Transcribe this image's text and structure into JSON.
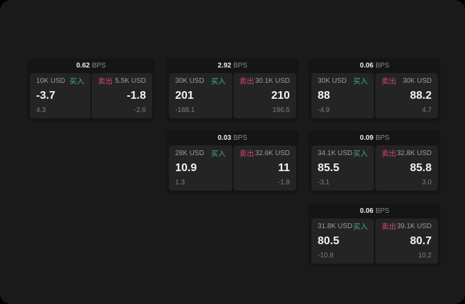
{
  "window": {
    "background": "#1a1a1b"
  },
  "labels": {
    "buy_side": "买入",
    "sell_side": "卖出",
    "bps_unit": "BPS"
  },
  "colors": {
    "page_bg": "#1a1a1b",
    "card_bg": "#151516",
    "panel_bg": "#242425",
    "buy": "#3fae6f",
    "sell": "#d04a68",
    "value_text": "#f4f4f4",
    "muted_text": "#9c9c9c",
    "faint_text": "#7e7e7e"
  },
  "cards": [
    {
      "bps": "0.62",
      "grid": {
        "row": 0,
        "col": 0
      },
      "buy": {
        "notional": "10K USD",
        "price": "-3.7",
        "change": "4.3"
      },
      "sell": {
        "notional": "5.5K USD",
        "price": "-1.8",
        "change": "-2.6"
      }
    },
    {
      "bps": "2.92",
      "grid": {
        "row": 0,
        "col": 1
      },
      "buy": {
        "notional": "30K USD",
        "price": "201",
        "change": "-188.1"
      },
      "sell": {
        "notional": "30.1K USD",
        "price": "210",
        "change": "196.5"
      }
    },
    {
      "bps": "0.06",
      "grid": {
        "row": 0,
        "col": 2
      },
      "buy": {
        "notional": "30K USD",
        "price": "88",
        "change": "-4.9"
      },
      "sell": {
        "notional": "30K USD",
        "price": "88.2",
        "change": "4.7"
      }
    },
    {
      "bps": "0.03",
      "grid": {
        "row": 1,
        "col": 1
      },
      "buy": {
        "notional": "28K USD",
        "price": "10.9",
        "change": "1.3"
      },
      "sell": {
        "notional": "32.6K USD",
        "price": "11",
        "change": "-1.8"
      }
    },
    {
      "bps": "0.09",
      "grid": {
        "row": 1,
        "col": 2
      },
      "buy": {
        "notional": "34.1K USD",
        "price": "85.5",
        "change": "-3.1"
      },
      "sell": {
        "notional": "32.8K USD",
        "price": "85.8",
        "change": "3.0"
      }
    },
    {
      "bps": "0.06",
      "grid": {
        "row": 2,
        "col": 2
      },
      "buy": {
        "notional": "31.8K USD",
        "price": "80.5",
        "change": "-10.8"
      },
      "sell": {
        "notional": "39.1K USD",
        "price": "80.7",
        "change": "10.2"
      }
    }
  ]
}
